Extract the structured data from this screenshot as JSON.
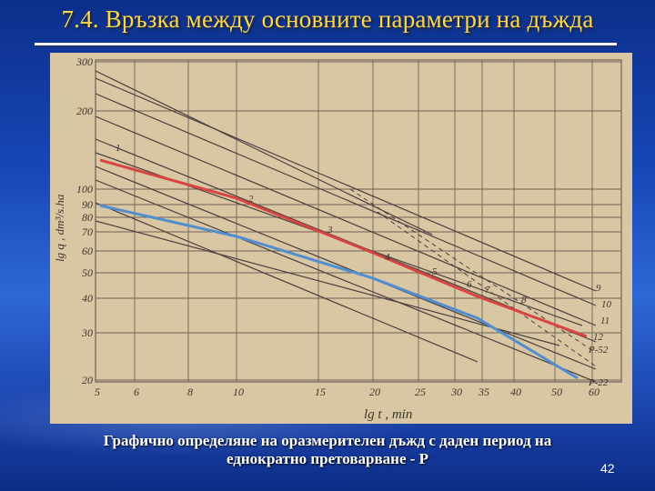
{
  "slide": {
    "title": "7.4. Връзка между основните параметри на дъжда",
    "caption_line1": "Графично определяне на оразмерителен дъжд с даден период на",
    "caption_line2": "еднократно претоварване - Р",
    "page_number": "42"
  },
  "figure": {
    "y_axis_label": "lg q , dm³/s.ha",
    "x_axis_label": "lg t , min",
    "y_ticks": [
      "300",
      "200",
      "100",
      "90",
      "80",
      "70",
      "60",
      "50",
      "40",
      "30",
      "20"
    ],
    "x_ticks": [
      "5",
      "6",
      "8",
      "10",
      "15",
      "20",
      "25",
      "30",
      "35",
      "40",
      "50",
      "60"
    ],
    "line_labels": [
      "1",
      "2",
      "3",
      "4",
      "5",
      "6",
      "7",
      "8",
      "9",
      "10",
      "11",
      "12"
    ],
    "series_labels": [
      "P-52",
      "P-22"
    ],
    "colors": {
      "paper": "#d9c6a3",
      "grid": "#6f625a",
      "red_line": "#d8443f",
      "blue_line": "#4f8ed0",
      "dark_line": "#4a4040"
    }
  }
}
